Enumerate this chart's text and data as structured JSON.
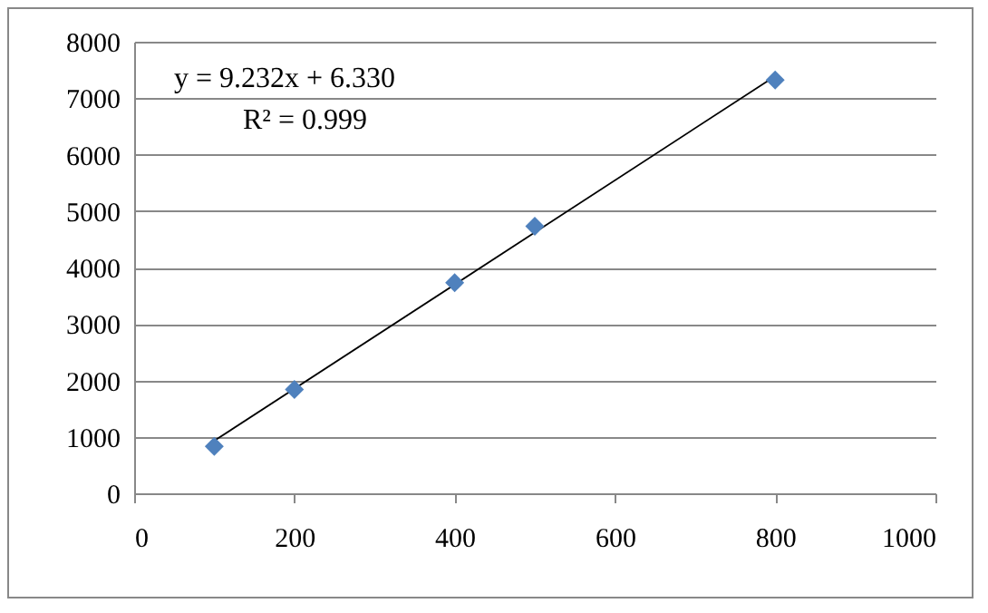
{
  "chart_data": {
    "type": "scatter",
    "x": [
      100,
      200,
      400,
      500,
      800
    ],
    "series": [
      {
        "color": "#4f81bd",
        "values": [
          830,
          1840,
          3730,
          4730,
          7320
        ]
      },
      {
        "type": "line",
        "color": "#000000",
        "marker": "none",
        "x": [
          100,
          800
        ],
        "values": [
          930,
          7390
        ]
      }
    ],
    "annotations": [
      "y = 9.232x + 6.330",
      "R² = 0.999"
    ],
    "xlim": [
      0,
      1000
    ],
    "xticks": [
      0,
      200,
      400,
      600,
      800,
      1000
    ],
    "ylim": [
      0,
      8000
    ],
    "yticks": [
      0,
      1000,
      2000,
      3000,
      4000,
      5000,
      6000,
      7000,
      8000
    ],
    "grid": "y",
    "marker": "diamond",
    "line_style": "solid"
  }
}
